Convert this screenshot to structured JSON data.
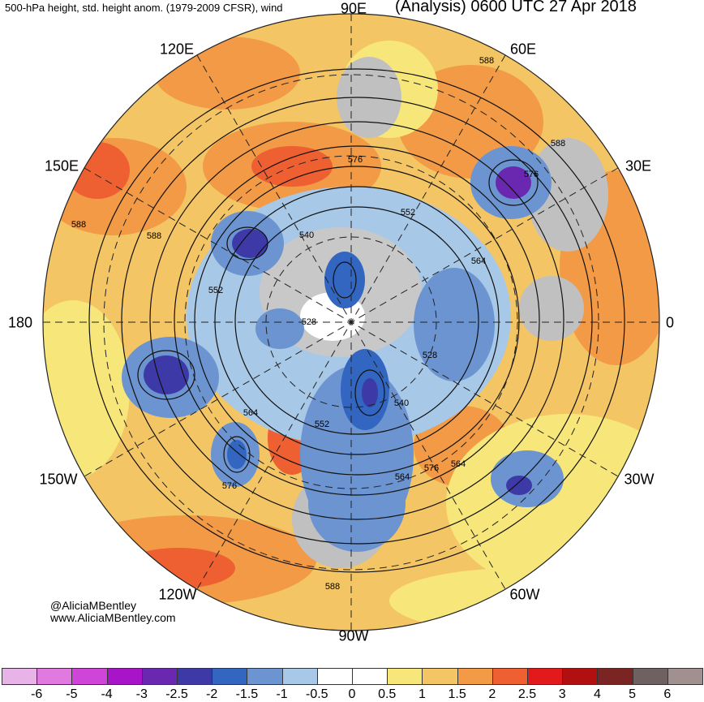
{
  "header": {
    "left": "500-hPa height, std. height anom. (1979-2009 CFSR), wind",
    "right": "(Analysis) 0600 UTC 27 Apr 2018"
  },
  "credits": {
    "twitter": "@AliciaMBentley",
    "website": "www.AliciaMBentley.com"
  },
  "longitude_labels": {
    "top": "90E",
    "upper_left": "120E",
    "upper_right": "60E",
    "mid_upper_left": "150E",
    "mid_upper_right": "30E",
    "left": "180",
    "right": "0",
    "mid_lower_left": "150W",
    "mid_lower_right": "30W",
    "lower_left": "120W",
    "lower_right": "60W",
    "bottom": "90W"
  },
  "contour_labels": [
    "588",
    "576",
    "588",
    "576",
    "552",
    "540",
    "564",
    "588",
    "588",
    "552",
    "528",
    "528",
    "540",
    "552",
    "564",
    "576",
    "564",
    "564",
    "576",
    "588"
  ],
  "legend": {
    "colors": [
      "#e8b4e8",
      "#e07ae0",
      "#cf45d8",
      "#a814c8",
      "#6a28b0",
      "#3d3aa8",
      "#3266c0",
      "#6b94d0",
      "#a8c8e8",
      "#ffffff",
      "#ffffff",
      "#f7e77a",
      "#f3c565",
      "#f29a45",
      "#ee5f32",
      "#e31a1c",
      "#b01010",
      "#7a2424",
      "#6f6161",
      "#a09090"
    ],
    "labels": [
      "-6",
      "-5",
      "-4",
      "-3",
      "-2.5",
      "-2",
      "-1.5",
      "-1",
      "-0.5",
      "0",
      "0.5",
      "1",
      "1.5",
      "2",
      "2.5",
      "3",
      "4",
      "5",
      "6"
    ]
  }
}
